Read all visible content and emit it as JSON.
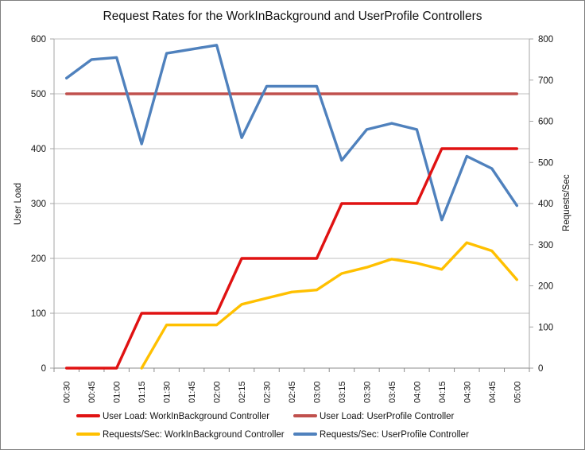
{
  "chart_data": {
    "type": "line",
    "title": "Request Rates for the WorkInBackground and UserProfile Controllers",
    "ylabel_left": "User Load",
    "ylabel_right": "Requests/Sec",
    "x_categories": [
      "00:30",
      "00:45",
      "01:00",
      "01:15",
      "01:30",
      "01:45",
      "02:00",
      "02:15",
      "02:30",
      "02:45",
      "03:00",
      "03:15",
      "03:30",
      "03:45",
      "04:00",
      "04:15",
      "04:30",
      "04:45",
      "05:00"
    ],
    "ylim_left": [
      0,
      600
    ],
    "ytick_step_left": 100,
    "ylim_right": [
      0,
      800
    ],
    "ytick_step_right": 100,
    "grid": "horizontal",
    "legend_position": "bottom",
    "colors": {
      "grid": "#bfbfbf",
      "axis": "#8c8c8c",
      "side_axis": "#a6a6a6"
    },
    "series": [
      {
        "name": "User Load: WorkInBackground Controller",
        "axis": "left",
        "color": "#e01212",
        "values": [
          0,
          0,
          0,
          100,
          100,
          100,
          100,
          200,
          200,
          200,
          200,
          300,
          300,
          300,
          300,
          400,
          400,
          400,
          400
        ]
      },
      {
        "name": "User Load: UserProfile Controller",
        "axis": "left",
        "color": "#c0504d",
        "values": [
          500,
          500,
          500,
          500,
          500,
          500,
          500,
          500,
          500,
          500,
          500,
          500,
          500,
          500,
          500,
          500,
          500,
          500,
          500
        ]
      },
      {
        "name": "Requests/Sec: WorkInBackground Controller",
        "axis": "right",
        "color": "#ffc000",
        "values": [
          null,
          null,
          null,
          0,
          105,
          105,
          105,
          155,
          170,
          185,
          190,
          230,
          245,
          265,
          255,
          240,
          305,
          285,
          215
        ]
      },
      {
        "name": "Requests/Sec: UserProfile Controller",
        "axis": "right",
        "color": "#4f81bd",
        "values": [
          705,
          750,
          755,
          545,
          765,
          775,
          785,
          560,
          685,
          685,
          685,
          505,
          580,
          595,
          580,
          360,
          515,
          485,
          395
        ]
      }
    ]
  }
}
